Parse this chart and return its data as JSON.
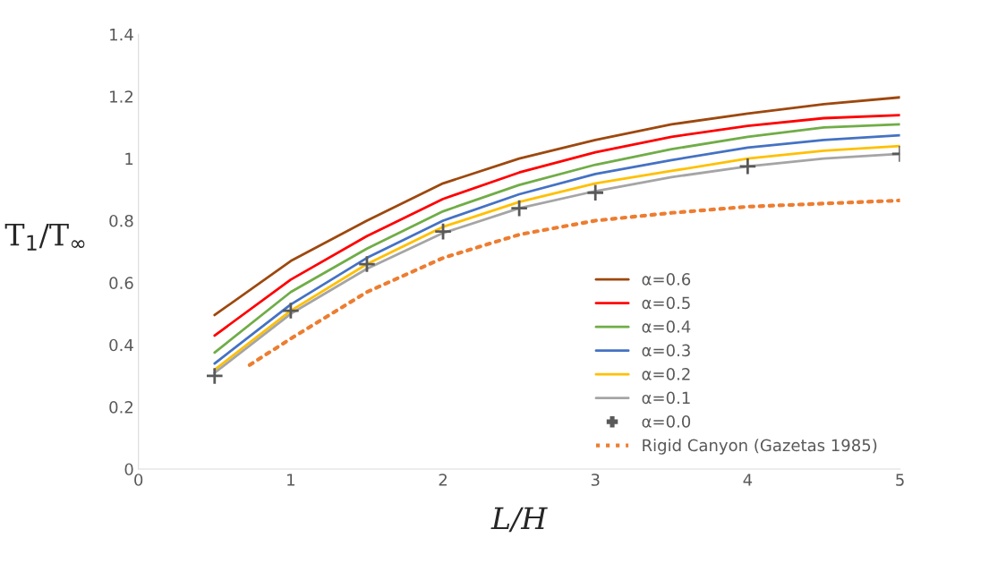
{
  "chart_data": {
    "type": "line",
    "xlabel": "L/H",
    "ylabel": "T$_{1}$/T$_{∞}$",
    "xlim": [
      0,
      5
    ],
    "xticks": [
      0,
      1,
      2,
      3,
      4,
      5
    ],
    "ylim": [
      0,
      1.4
    ],
    "yticks": [
      0,
      0.2,
      0.4,
      0.6,
      0.8,
      1,
      1.2,
      1.4
    ],
    "grid": false,
    "legend": "bottom right",
    "marker": "none",
    "line_style": "solid",
    "x": [
      0.5,
      1,
      1.5,
      2,
      2.5,
      3,
      3.5,
      4,
      4.5,
      5
    ],
    "series": [
      {
        "name": "α=0.6",
        "color": "#9e480e",
        "values": [
          0.496,
          0.67,
          0.8,
          0.92,
          1.0,
          1.06,
          1.11,
          1.145,
          1.175,
          1.197
        ]
      },
      {
        "name": "α=0.5",
        "color": "#ff0000",
        "values": [
          0.43,
          0.61,
          0.75,
          0.87,
          0.955,
          1.02,
          1.07,
          1.105,
          1.13,
          1.14
        ]
      },
      {
        "name": "α=0.4",
        "color": "#70ad47",
        "values": [
          0.375,
          0.57,
          0.71,
          0.83,
          0.915,
          0.98,
          1.03,
          1.07,
          1.1,
          1.11
        ]
      },
      {
        "name": "α=0.3",
        "color": "#4472c4",
        "values": [
          0.34,
          0.53,
          0.68,
          0.8,
          0.885,
          0.95,
          0.995,
          1.035,
          1.06,
          1.075
        ]
      },
      {
        "name": "α=0.2",
        "color": "#ffc000",
        "values": [
          0.32,
          0.51,
          0.66,
          0.78,
          0.86,
          0.92,
          0.96,
          1.0,
          1.025,
          1.04
        ]
      },
      {
        "name": "α=0.1",
        "color": "#a5a5a5",
        "values": [
          0.31,
          0.5,
          0.645,
          0.76,
          0.84,
          0.895,
          0.94,
          0.975,
          1.0,
          1.015
        ]
      },
      {
        "name": "α=0.0",
        "color": "#595959",
        "type": "scatter",
        "marker": "cross",
        "x": [
          0.5,
          1,
          1.5,
          2,
          2.5,
          3,
          4,
          5
        ],
        "values": [
          0.3,
          0.51,
          0.66,
          0.765,
          0.84,
          0.89,
          0.975,
          1.015
        ]
      },
      {
        "name": "Rigid Canyon (Gazetas 1985)",
        "color": "#ed7d31",
        "line_style": "dotted",
        "x": [
          0.73,
          1,
          1.5,
          2,
          2.5,
          3,
          3.5,
          4,
          4.5,
          5
        ],
        "values": [
          0.335,
          0.42,
          0.57,
          0.68,
          0.755,
          0.8,
          0.825,
          0.845,
          0.855,
          0.865
        ]
      }
    ]
  }
}
